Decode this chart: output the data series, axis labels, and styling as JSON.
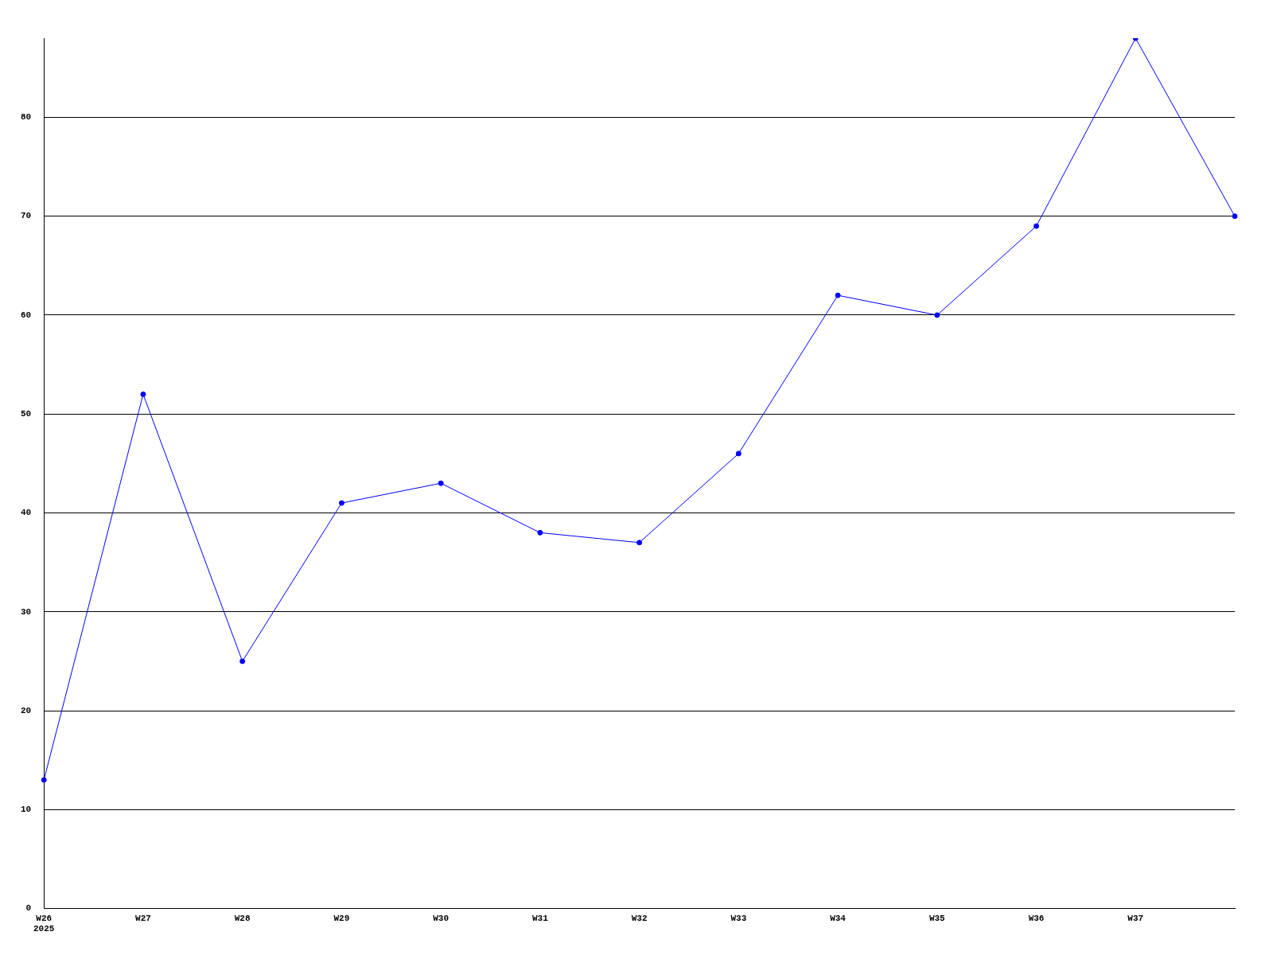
{
  "chart_data": {
    "type": "line",
    "categories": [
      "W26\n2025",
      "W27",
      "W28",
      "W29",
      "W30",
      "W31",
      "W32",
      "W33",
      "W34",
      "W35",
      "W36",
      "W37",
      null
    ],
    "series": [
      {
        "color": "#0000ff",
        "values": [
          13,
          52,
          25,
          41,
          43,
          38,
          37,
          46,
          62,
          60,
          69,
          88,
          70
        ]
      }
    ],
    "ylim": [
      0,
      88
    ],
    "yticks": [
      0,
      10,
      20,
      30,
      40,
      50,
      60,
      70,
      80
    ],
    "grid": "y",
    "legend": false,
    "marker": "circle",
    "line_style": "solid"
  }
}
